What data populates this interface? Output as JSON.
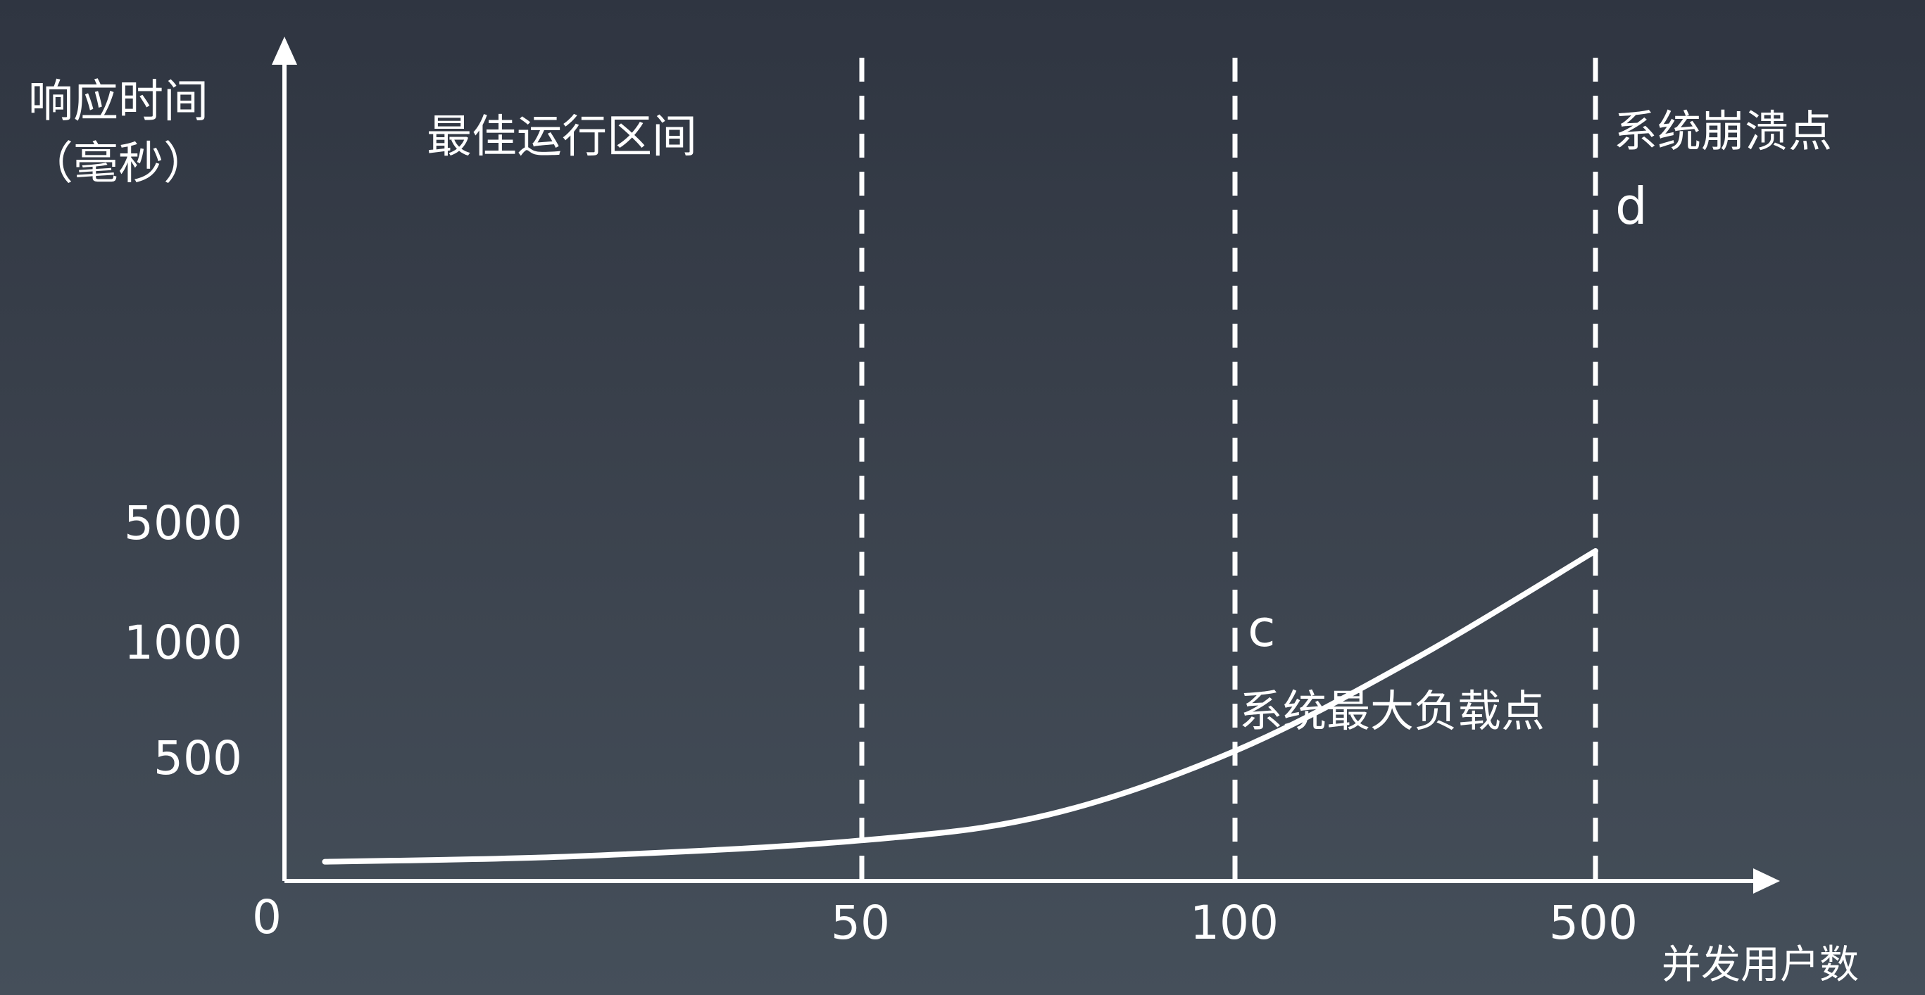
{
  "chart_data": {
    "type": "line",
    "title": "",
    "ylabel_line1": "响应时间",
    "ylabel_line2": "（毫秒）",
    "xlabel": "并发用户数",
    "x_origin_label": "0",
    "x_tick_labels": [
      "50",
      "100",
      "500"
    ],
    "y_tick_labels": [
      "5000",
      "1000",
      "500"
    ],
    "grid": false,
    "reference_lines": [
      {
        "x": "50",
        "style": "dashed"
      },
      {
        "x": "100",
        "style": "dashed"
      },
      {
        "x": "500",
        "style": "dashed"
      }
    ],
    "annotations": [
      {
        "text": "最佳运行区间",
        "region": "0-50"
      },
      {
        "text": "c",
        "point": "c",
        "x": "100"
      },
      {
        "text": "系统最大负载点",
        "x": "100"
      },
      {
        "text": "系统崩溃点",
        "x": "500"
      },
      {
        "text": "d",
        "point": "d",
        "x": "500"
      }
    ],
    "series": [
      {
        "x_index": [
          0.07,
          0.5,
          1,
          1.5,
          2,
          2.5,
          3
        ],
        "y_index": [
          0.18,
          0.23,
          0.38,
          0.62,
          1.2,
          2.0,
          2.9
        ],
        "note_units": "x_index: 0..3 maps to ticks 0,50,100,500; y_index: 0..3 maps to ticks 0,500,1000,5000"
      }
    ]
  }
}
